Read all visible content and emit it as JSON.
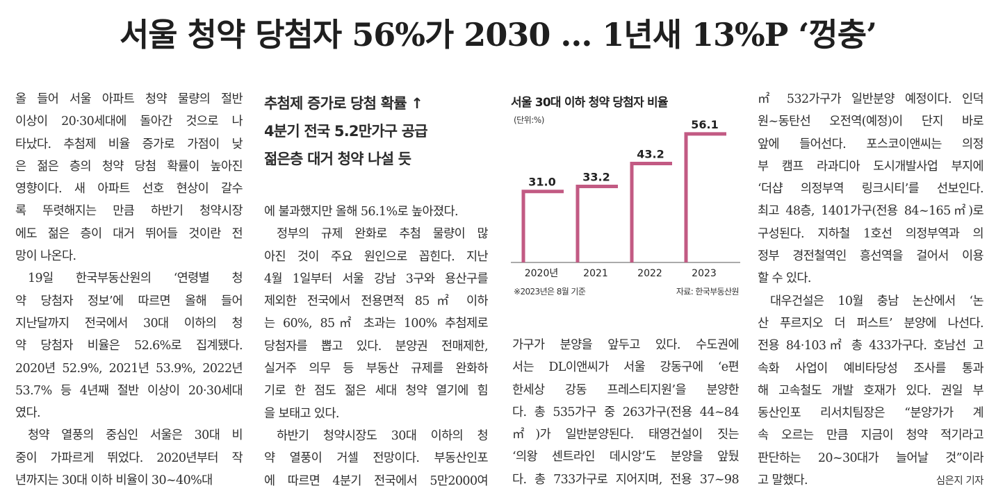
{
  "headline": "서울 청약 당첨자 56%가 2030 … 1년새 13%P ‘껑충’",
  "subheadline": [
    "추첨제 증가로 당첨 확률 ↑",
    "4분기 전국 5.2만가구 공급",
    "젊은층 대거 청약 나설 듯"
  ],
  "columns": {
    "col1": [
      "올 들어 서울 아파트 청약 물량의 절반",
      "이상이 20·30세대에 돌아간 것으로 나",
      "타났다. 추첨제 비율 증가로 가점이 낮",
      "은 젊은 층의 청약 당첨 확률이 높아진",
      "영향이다. 새 아파트 선호 현상이 갈수",
      "록 뚜렷해지는 만큼 하반기 청약시장",
      "에도 젊은 층이 대거 뛰어들 것이란 전",
      "망이 나온다.",
      "19일 한국부동산원의 ‘연령별 청",
      "약 당첨자 정보’에 따르면 올해 들어",
      "지난달까지 전국에서 30대 이하의 청",
      "약 당첨자 비율은 52.6%로 집계됐다.",
      "2020년 52.9%, 2021년 53.9%, 2022년",
      "53.7% 등 4년째 절반 이상이 20·30세대",
      "였다.",
      "청약 열풍의 중심인 서울은 30대 비",
      "중이 가파르게 뛰었다. 2020년부터 작",
      "년까지는 30대 이하 비율이 30~40%대"
    ],
    "col2": [
      "에 불과했지만 올해 56.1%로 높아졌다.",
      "정부의 규제 완화로 추첨 물량이 많",
      "아진 것이 주요 원인으로 꼽힌다. 지난",
      "4월 1일부터 서울 강남 3구와 용산구를",
      "제외한 전국에서 전용면적 85㎡ 이하",
      "는 60%, 85㎡ 초과는 100% 추첨제로",
      "당첨자를 뽑고 있다. 분양권 전매제한,",
      "실거주 의무 등 부동산 규제를 완화하",
      "기로 한 점도 젊은 세대 청약 열기에 힘",
      "을 보태고 있다.",
      "하반기 청약시장도 30대 이하의 청",
      "약 열풍이 거셀 전망이다. 부동산인포",
      "에 따르면 4분기 전국에서 5만2000여"
    ],
    "col3": [
      "가구가 분양을 앞두고 있다. 수도권에",
      "서는 DL이앤씨가 서울 강동구에 ‘e편",
      "한세상 강동 프레스티지원’을 분양한",
      "다. 총 535가구 중 263가구(전용 44~84",
      "㎡)가 일반분양된다. 태영건설이 짓는",
      "‘의왕 센트라인 데시앙’도 분양을 앞뒀",
      "다. 총 733가구로 지어지며, 전용 37~98"
    ],
    "col4": [
      "㎡ 532가구가 일반분양 예정이다. 인덕",
      "원~동탄선 오전역(예정)이 단지 바로",
      "앞에 들어선다. 포스코이앤씨는 의정",
      "부 캠프 라과디아 도시개발사업 부지에",
      "‘더샵 의정부역 링크시티’를 선보인다.",
      "최고 48층, 1401가구(전용 84~165㎡)로",
      "구성된다. 지하철 1호선 의정부역과 의",
      "정부 경전철역인 흥선역을 걸어서 이용",
      "할 수 있다.",
      "대우건설은 10월 충남 논산에서 ‘논",
      "산 푸르지오 더 퍼스트’ 분양에 나선다.",
      "전용 84·103㎡ 총 433가구다. 호남선 고",
      "속화 사업이 예비타당성 조사를 통과",
      "해 고속철도 개발 호재가 있다. 권일 부",
      "동산인포 리서치팀장은 “분양가가 계",
      "속 오르는 만큼 지금이 청약 적기라고",
      "판단하는 20~30대가 늘어날 것”이라",
      "고 말했다."
    ]
  },
  "byline": "심은지 기자",
  "chart_data": {
    "type": "step-bar",
    "title": "서울 30대 이하 청약 당첨자 비율",
    "unit": "(단위:%)",
    "categories": [
      "2020년",
      "2021",
      "2022",
      "2023"
    ],
    "values": [
      31.0,
      33.2,
      43.2,
      56.1
    ],
    "value_labels": [
      "31.0",
      "33.2",
      "43.2",
      "56.1"
    ],
    "note": "※2023년은 8월 기준",
    "source": "자료: 한국부동산원",
    "ylim": [
      0,
      60
    ],
    "colors": {
      "bar": "#c25a83",
      "axis": "#555555",
      "label": "#222222"
    }
  }
}
